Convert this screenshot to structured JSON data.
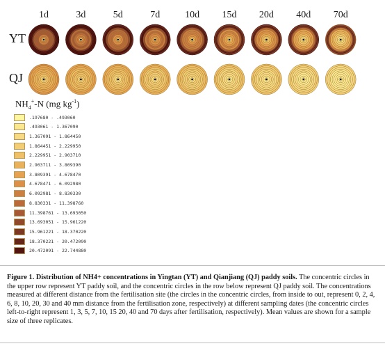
{
  "chart_data": {
    "type": "heatmap",
    "title": "",
    "days": [
      "1d",
      "3d",
      "5d",
      "7d",
      "10d",
      "15d",
      "20d",
      "40d",
      "70d"
    ],
    "rows": [
      "YT",
      "QJ"
    ],
    "distances_mm": [
      0,
      2,
      4,
      6,
      8,
      10,
      20,
      30,
      40
    ],
    "legend_title": "NH4+-N (mg kg-1)",
    "legend": [
      {
        "range": ".197680 - .493060",
        "color": "#fff6a0"
      },
      {
        "range": ".493061 - 1.367090",
        "color": "#fbe790"
      },
      {
        "range": "1.367091 - 1.864450",
        "color": "#f7da82"
      },
      {
        "range": "1.864451 - 2.229950",
        "color": "#f3cd74"
      },
      {
        "range": "2.229951 - 2.903710",
        "color": "#efc066"
      },
      {
        "range": "2.903711 - 3.809390",
        "color": "#ebb15a"
      },
      {
        "range": "3.809391 - 4.678470",
        "color": "#e6a24f"
      },
      {
        "range": "4.678471 - 6.092980",
        "color": "#dc9048"
      },
      {
        "range": "6.092981 - 8.830330",
        "color": "#cd7e41"
      },
      {
        "range": "8.830331 - 11.398760",
        "color": "#bb6b3a"
      },
      {
        "range": "11.398761 - 13.693050",
        "color": "#a65934"
      },
      {
        "range": "13.693051 - 15.961220",
        "color": "#91482d"
      },
      {
        "range": "15.961221 - 18.370220",
        "color": "#7c3725"
      },
      {
        "range": "18.370221 - 20.472090",
        "color": "#67261c"
      },
      {
        "range": "20.472091 - 22.744880",
        "color": "#531510"
      }
    ],
    "ring_classes": {
      "YT": [
        [
          2,
          2,
          2,
          2,
          2,
          1,
          1,
          1,
          1
        ],
        [
          8,
          8,
          7,
          7,
          6,
          5,
          4,
          3,
          2
        ],
        [
          8,
          8,
          7,
          7,
          7,
          6,
          5,
          4,
          3
        ],
        [
          10,
          9,
          9,
          8,
          8,
          7,
          6,
          5,
          4
        ],
        [
          10,
          10,
          9,
          9,
          8,
          8,
          7,
          6,
          5
        ],
        [
          10,
          9,
          9,
          8,
          8,
          7,
          7,
          6,
          5
        ],
        [
          12,
          12,
          11,
          11,
          10,
          10,
          9,
          9,
          8
        ],
        [
          14,
          14,
          14,
          14,
          13,
          13,
          13,
          12,
          12
        ],
        [
          14,
          14,
          13,
          13,
          13,
          12,
          12,
          12,
          11
        ]
      ],
      "QJ": [
        [
          2,
          2,
          1,
          1,
          1,
          1,
          1,
          1,
          1
        ],
        [
          3,
          3,
          2,
          2,
          2,
          1,
          1,
          1,
          1
        ],
        [
          4,
          4,
          3,
          3,
          3,
          2,
          2,
          1,
          1
        ],
        [
          5,
          4,
          4,
          3,
          3,
          2,
          2,
          1,
          1
        ],
        [
          5,
          5,
          4,
          4,
          3,
          3,
          2,
          2,
          1
        ],
        [
          5,
          4,
          4,
          3,
          3,
          2,
          2,
          2,
          1
        ],
        [
          6,
          5,
          5,
          4,
          4,
          3,
          3,
          2,
          2
        ],
        [
          6,
          6,
          5,
          5,
          4,
          4,
          3,
          3,
          2
        ],
        [
          7,
          6,
          6,
          5,
          5,
          4,
          4,
          3,
          3
        ]
      ]
    }
  },
  "caption": {
    "heading": "Figure 1.  Distribution of NH4+ concentrations in Yingtan (YT) and Qianjiang (QJ) paddy soils.",
    "body": " The concentric circles in the upper row represent YT paddy soil, and the concentric circles in the row below represent QJ paddy soil. The concentrations measured at different distance from the fertilisation site (the circles in the concentric circles, from inside to out, represent 0, 2, 4, 6, 8, 10, 20, 30 and 40 mm distance from the fertilisation zone, respectively) at different sampling dates (the concentric circles left-to-right represent 1, 3, 5, 7, 10, 15 20, 40 and 70 days after fertilisation, respectively). Mean values are shown for a sample size of three replicates."
  }
}
